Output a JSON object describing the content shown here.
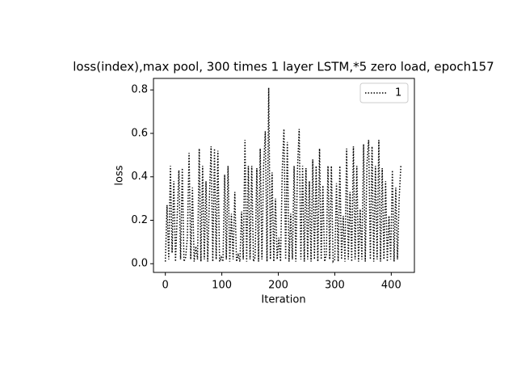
{
  "chart_data": {
    "type": "line",
    "title": "loss(index),max pool, 300 times 1 layer LSTM,*5 zero load, epoch157",
    "xlabel": "Iteration",
    "ylabel": "loss",
    "x": [
      0,
      3,
      6,
      9,
      12,
      15,
      18,
      21,
      24,
      27,
      30,
      33,
      36,
      39,
      42,
      45,
      48,
      51,
      54,
      57,
      60,
      63,
      66,
      69,
      72,
      75,
      78,
      81,
      84,
      87,
      90,
      93,
      96,
      99,
      102,
      105,
      108,
      111,
      114,
      117,
      120,
      123,
      126,
      129,
      132,
      135,
      138,
      141,
      144,
      147,
      150,
      153,
      156,
      159,
      162,
      165,
      168,
      171,
      174,
      177,
      180,
      183,
      186,
      189,
      192,
      195,
      198,
      201,
      204,
      207,
      210,
      213,
      216,
      219,
      222,
      225,
      228,
      231,
      234,
      237,
      240,
      243,
      246,
      249,
      252,
      255,
      258,
      261,
      264,
      267,
      270,
      273,
      276,
      279,
      282,
      285,
      288,
      291,
      294,
      297,
      300,
      303,
      306,
      309,
      312,
      315,
      318,
      321,
      324,
      327,
      330,
      333,
      336,
      339,
      342,
      345,
      348,
      351,
      354,
      357,
      360,
      363,
      366,
      369,
      372,
      375,
      378,
      381,
      384,
      387,
      390,
      393,
      396,
      399,
      402,
      405,
      408,
      411,
      414,
      417
    ],
    "series": [
      {
        "name": "1",
        "color": "#000000",
        "values": [
          0.01,
          0.27,
          0.02,
          0.45,
          0.05,
          0.38,
          0.01,
          0.22,
          0.43,
          0.02,
          0.44,
          0.01,
          0.03,
          0.12,
          0.51,
          0.02,
          0.35,
          0.01,
          0.08,
          0.02,
          0.53,
          0.01,
          0.45,
          0.02,
          0.38,
          0.01,
          0.3,
          0.54,
          0.01,
          0.53,
          0.02,
          0.52,
          0.01,
          0.03,
          0.01,
          0.41,
          0.02,
          0.45,
          0.01,
          0.23,
          0.02,
          0.33,
          0.01,
          0.04,
          0.01,
          0.24,
          0.02,
          0.57,
          0.01,
          0.45,
          0.02,
          0.45,
          0.01,
          0.03,
          0.44,
          0.01,
          0.53,
          0.02,
          0.45,
          0.61,
          0.01,
          0.81,
          0.02,
          0.42,
          0.01,
          0.3,
          0.02,
          0.12,
          0.01,
          0.43,
          0.62,
          0.02,
          0.56,
          0.01,
          0.23,
          0.02,
          0.45,
          0.01,
          0.44,
          0.62,
          0.02,
          0.45,
          0.01,
          0.44,
          0.02,
          0.38,
          0.01,
          0.48,
          0.02,
          0.45,
          0.01,
          0.53,
          0.02,
          0.36,
          0.01,
          0.04,
          0.45,
          0.02,
          0.45,
          0.01,
          0.02,
          0.37,
          0.01,
          0.45,
          0.02,
          0.22,
          0.01,
          0.53,
          0.02,
          0.33,
          0.01,
          0.54,
          0.02,
          0.45,
          0.01,
          0.25,
          0.02,
          0.55,
          0.01,
          0.46,
          0.57,
          0.02,
          0.54,
          0.01,
          0.45,
          0.02,
          0.57,
          0.01,
          0.44,
          0.02,
          0.38,
          0.01,
          0.22,
          0.02,
          0.43,
          0.01,
          0.35,
          0.02,
          0.3,
          0.45
        ]
      }
    ],
    "xlim": [
      -21,
      441
    ],
    "xticks": [
      0,
      100,
      200,
      300,
      400
    ],
    "ylim": [
      -0.04,
      0.853
    ],
    "yticks": [
      {
        "value": 0,
        "label": "0.0"
      },
      0.2,
      0.4,
      0.6,
      0.8
    ],
    "legend": "upper right"
  }
}
